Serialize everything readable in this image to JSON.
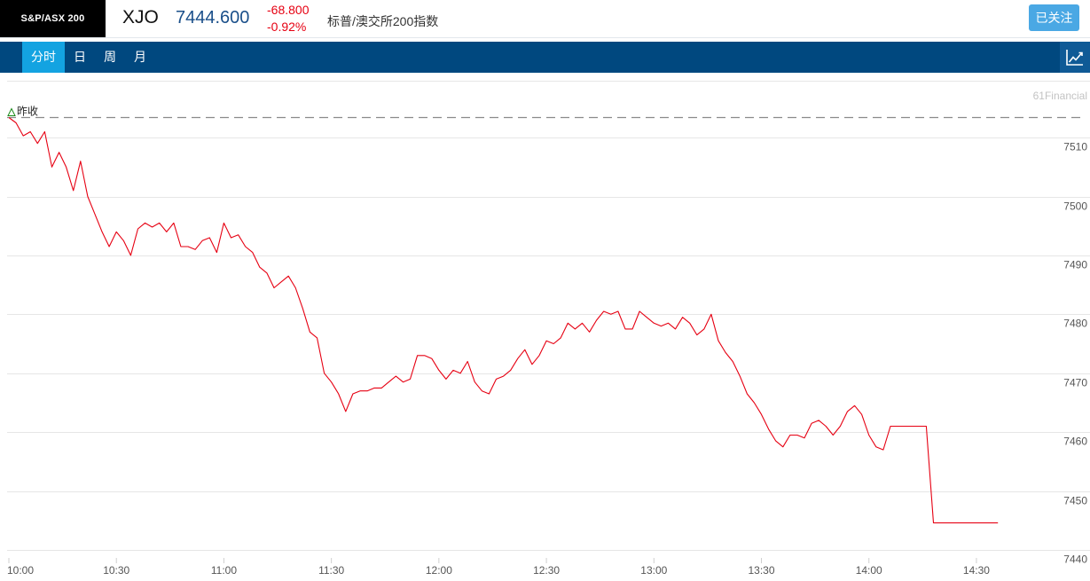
{
  "header": {
    "exchange_logo": "S&P/ASX 200",
    "symbol": "XJO",
    "price": "7444.600",
    "change": "-68.800",
    "change_pct": "-0.92%",
    "name": "标普/澳交所200指数",
    "follow_label": "已关注"
  },
  "tabs": [
    {
      "label": "分时",
      "active": true
    },
    {
      "label": "日",
      "active": false
    },
    {
      "label": "周",
      "active": false
    },
    {
      "label": "月",
      "active": false
    }
  ],
  "trend_button": {
    "icon": "line-chart-icon"
  },
  "colors": {
    "line": "#e60012",
    "nav_bg": "#00487f",
    "tab_active": "#13a3e1",
    "price": "#1a4f8a",
    "follow": "#4aa8e4"
  },
  "chart_data": {
    "type": "line",
    "watermark": "61Financial",
    "prev_close_label": "昨收",
    "prev_close": 7513.4,
    "ylim": [
      7440,
      7520
    ],
    "yticks": [
      7440,
      7450,
      7460,
      7470,
      7480,
      7490,
      7500,
      7510
    ],
    "xticks": [
      "10:00",
      "10:30",
      "11:00",
      "11:30",
      "12:00",
      "12:30",
      "13:00",
      "13:30",
      "14:00",
      "14:30"
    ],
    "x_start_min": 0,
    "x_end_min": 276,
    "series": [
      {
        "x": [
          0,
          2,
          4,
          6,
          8,
          10,
          12,
          14,
          16,
          18,
          20,
          22,
          24,
          26,
          28,
          30,
          32,
          34,
          36,
          38,
          40,
          42,
          44,
          46,
          48,
          50,
          52,
          54,
          56,
          58,
          60,
          62,
          64,
          66,
          68,
          70,
          72,
          74,
          76,
          78,
          80,
          82,
          84,
          86,
          88,
          90,
          92,
          94,
          96,
          98,
          100,
          102,
          104,
          106,
          108,
          110,
          112,
          114,
          116,
          118,
          120,
          122,
          124,
          126,
          128,
          130,
          132,
          134,
          136,
          138,
          140,
          142,
          144,
          146,
          148,
          150,
          152,
          154,
          156,
          158,
          160,
          162,
          164,
          166,
          168,
          170,
          172,
          174,
          176,
          178,
          180,
          182,
          184,
          186,
          188,
          190,
          192,
          194,
          196,
          198,
          200,
          202,
          204,
          206,
          208,
          210,
          212,
          214,
          216,
          218,
          220,
          222,
          224,
          226,
          228,
          230,
          232,
          234,
          236,
          238,
          240,
          242,
          244,
          246,
          248,
          250,
          252,
          254,
          256,
          258,
          260,
          262,
          264,
          266,
          268,
          270,
          272,
          274,
          276
        ],
        "y": [
          7513.4,
          7512.5,
          7510.3,
          7511.0,
          7509.0,
          7511.0,
          7505.0,
          7507.5,
          7505.0,
          7501.0,
          7506.0,
          7500.0,
          7497.0,
          7494.0,
          7491.5,
          7494.0,
          7492.5,
          7490.0,
          7494.5,
          7495.5,
          7494.8,
          7495.5,
          7494.0,
          7495.5,
          7491.5,
          7491.5,
          7491.0,
          7492.5,
          7493.0,
          7490.5,
          7495.5,
          7493.0,
          7493.5,
          7491.5,
          7490.5,
          7488.0,
          7487.0,
          7484.5,
          7485.5,
          7486.5,
          7484.5,
          7481.0,
          7477.0,
          7476.0,
          7470.0,
          7468.5,
          7466.5,
          7463.5,
          7466.5,
          7467.0,
          7467.0,
          7467.5,
          7467.5,
          7468.5,
          7469.5,
          7468.5,
          7469.0,
          7473.0,
          7473.0,
          7472.5,
          7470.5,
          7469.0,
          7470.5,
          7470.0,
          7472.0,
          7468.5,
          7467.0,
          7466.5,
          7469.0,
          7469.5,
          7470.5,
          7472.5,
          7474.0,
          7471.5,
          7473.0,
          7475.5,
          7475.0,
          7476.0,
          7478.5,
          7477.5,
          7478.5,
          7477.0,
          7479.0,
          7480.5,
          7480.0,
          7480.5,
          7477.5,
          7477.5,
          7480.5,
          7479.5,
          7478.5,
          7478.0,
          7478.5,
          7477.5,
          7479.5,
          7478.5,
          7476.5,
          7477.5,
          7480.0,
          7475.5,
          7473.5,
          7472.0,
          7469.5,
          7466.5,
          7465.0,
          7463.0,
          7460.5,
          7458.5,
          7457.5,
          7459.5,
          7459.5,
          7459.0,
          7461.5,
          7462.0,
          7461.0,
          7459.5,
          7461.0,
          7463.5,
          7464.5,
          7463.0,
          7459.5,
          7457.5,
          7457.0,
          7461.0,
          7461.0,
          7461.0,
          7461.0,
          7461.0,
          7461.0,
          7444.6,
          7444.6,
          7444.6,
          7444.6,
          7444.6,
          7444.6,
          7444.6,
          7444.6,
          7444.6,
          7444.6
        ]
      }
    ]
  }
}
